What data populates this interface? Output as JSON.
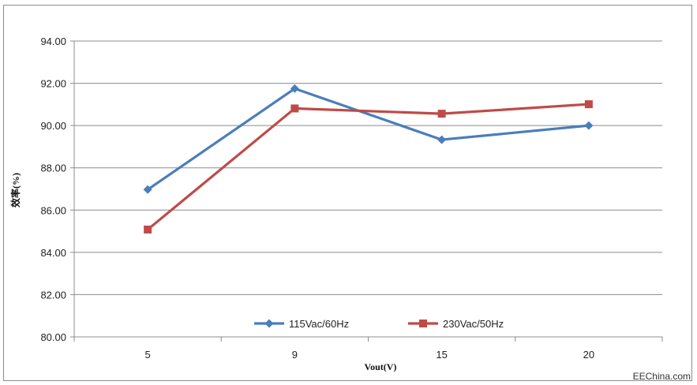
{
  "chart_data": {
    "type": "line",
    "categories": [
      "5",
      "9",
      "15",
      "20"
    ],
    "series": [
      {
        "name": "115Vac/60Hz",
        "values": [
          86.97,
          91.75,
          89.33,
          90.0
        ],
        "color": "#4a7ebb",
        "marker": "diamond"
      },
      {
        "name": "230Vac/50Hz",
        "values": [
          85.08,
          90.81,
          90.56,
          91.01
        ],
        "color": "#be4b48",
        "marker": "square"
      }
    ],
    "title": "",
    "xlabel": "Vout(V)",
    "ylabel": "效率(%)",
    "ylim": [
      80,
      94
    ],
    "ytick_step": 2,
    "yticks": [
      "80.00",
      "82.00",
      "84.00",
      "86.00",
      "88.00",
      "90.00",
      "92.00",
      "94.00"
    ],
    "grid": true,
    "legend": "bottom-inside"
  },
  "watermark": "EEChina.com"
}
